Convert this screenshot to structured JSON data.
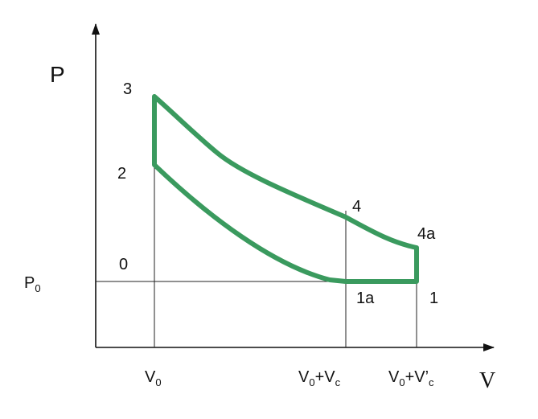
{
  "axis_labels": {
    "y": "P",
    "x": "V"
  },
  "points": [
    "3",
    "2",
    "0",
    "4",
    "4a",
    "1a",
    "1"
  ],
  "ticks": [
    [
      {
        "text": "P"
      },
      {
        "text": "0",
        "sub": true
      }
    ],
    [
      {
        "text": "V"
      },
      {
        "text": "0",
        "sub": true
      }
    ],
    [
      {
        "text": "V"
      },
      {
        "text": "0",
        "sub": true
      },
      {
        "text": "+V"
      },
      {
        "text": "c",
        "sub": true
      }
    ],
    [
      {
        "text": "V"
      },
      {
        "text": "0",
        "sub": true
      },
      {
        "text": "+V’"
      },
      {
        "text": "c",
        "sub": true
      }
    ]
  ]
}
